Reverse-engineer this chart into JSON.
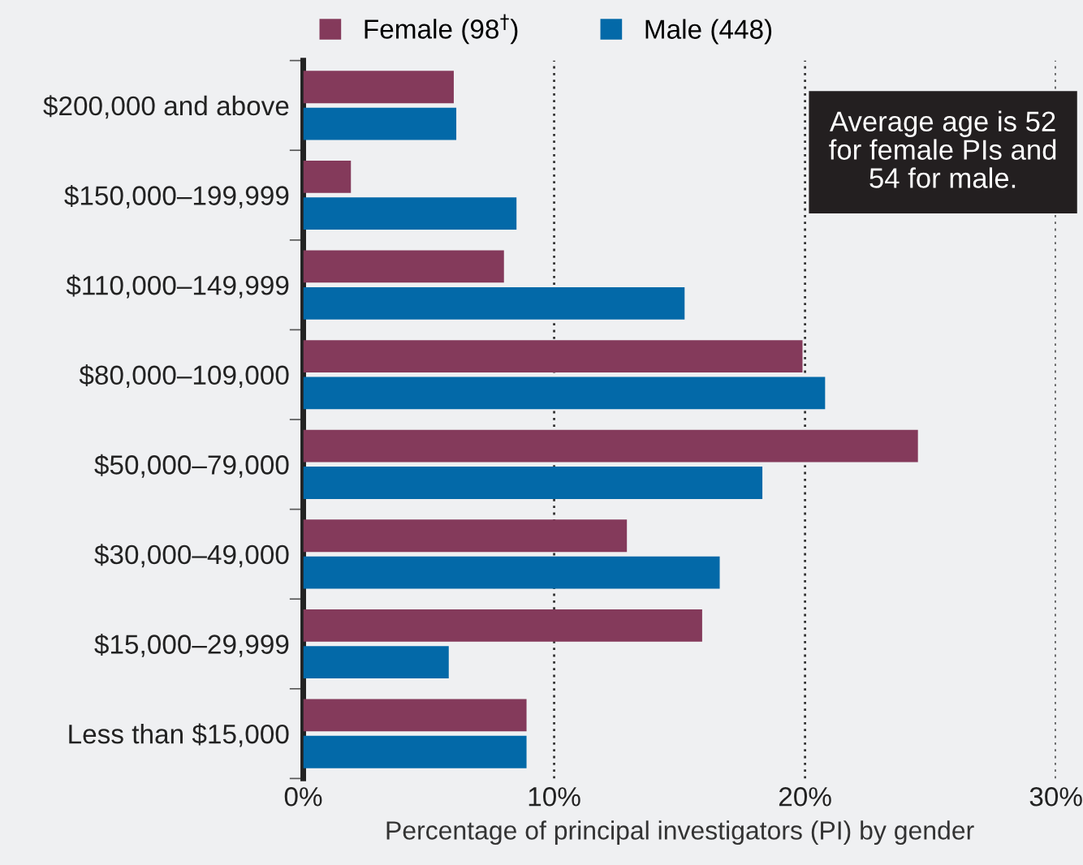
{
  "chart_data": {
    "type": "bar",
    "orientation": "horizontal",
    "categories": [
      "$200,000 and above",
      "$150,000–199,999",
      "$110,000–149,999",
      "$80,000–109,000",
      "$50,000–79,000",
      "$30,000–49,000",
      "$15,000–29,999",
      "Less than $15,000"
    ],
    "series": [
      {
        "name": "Female (98$^{†}$)",
        "color": "#843a5b",
        "values": [
          6.0,
          1.9,
          8.0,
          19.9,
          24.5,
          12.9,
          15.9,
          8.9
        ]
      },
      {
        "name": "Male (448)",
        "color": "#0369a8",
        "values": [
          6.1,
          8.5,
          15.2,
          20.8,
          18.3,
          16.6,
          5.8,
          8.9
        ]
      }
    ],
    "xlabel": "Percentage of principal investigators (PI) by gender",
    "xlim": [
      0,
      30
    ],
    "xticks": [
      {
        "value": 0,
        "label": "0%"
      },
      {
        "value": 10,
        "label": "10%"
      },
      {
        "value": 20,
        "label": "20%"
      },
      {
        "value": 30,
        "label": "30%"
      }
    ],
    "grid": "x",
    "legend": "top left",
    "annotations": [
      "Average age is 52\nfor female PIs and\n54 for male."
    ]
  }
}
